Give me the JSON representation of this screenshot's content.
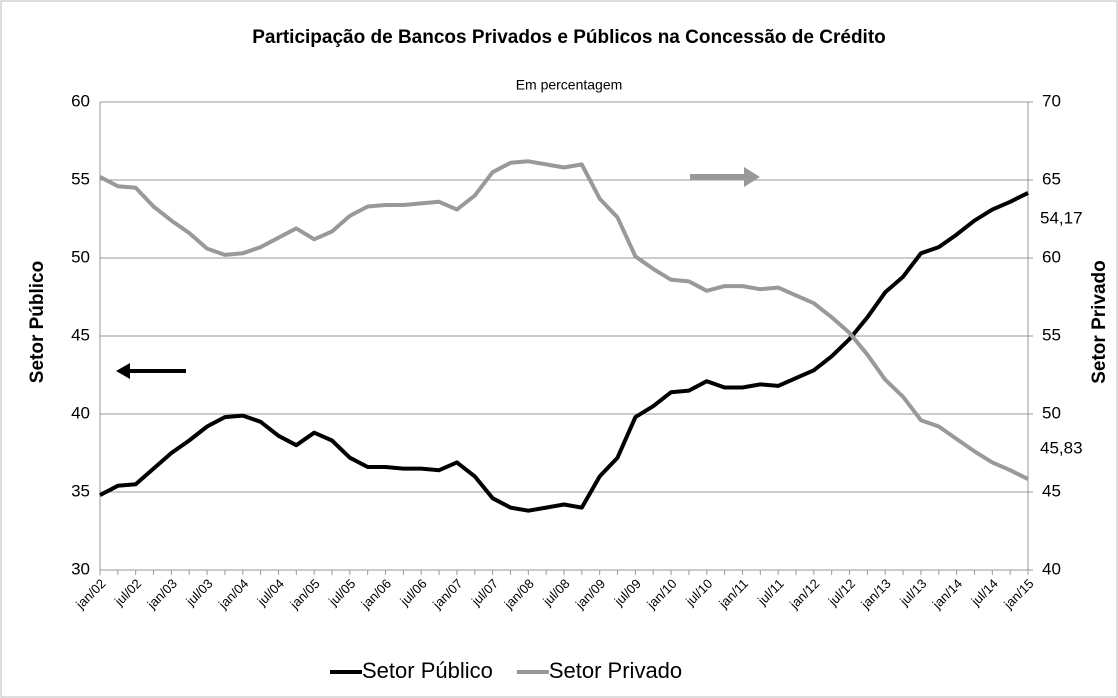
{
  "chart_data": {
    "type": "line",
    "title": "Participação de Bancos Privados e Públicos na Concessão de Crédito",
    "subtitle": "Em percentagem",
    "y_label": "Setor Público",
    "y2_label": "Setor Privado",
    "categories": [
      "jan/02",
      null,
      "jul/02",
      null,
      "jan/03",
      null,
      "jul/03",
      null,
      "jan/04",
      null,
      "jul/04",
      null,
      "jan/05",
      null,
      "jul/05",
      null,
      "jan/06",
      null,
      "jul/06",
      null,
      "jan/07",
      null,
      "jul/07",
      null,
      "jan/08",
      null,
      "jul/08",
      null,
      "jan/09",
      null,
      "jul/09",
      null,
      "jan/10",
      null,
      "jul/10",
      null,
      "jan/11",
      null,
      "jul/11",
      null,
      "jan/12",
      null,
      "jul/12",
      null,
      "jan/13",
      null,
      "jul/13",
      null,
      "jan/14",
      null,
      "jul/14",
      null,
      "jan/15"
    ],
    "series": [
      {
        "name": "Setor Público",
        "color": "#000000",
        "axis": "y",
        "values": [
          34.8,
          35.4,
          35.5,
          36.5,
          37.5,
          38.3,
          39.2,
          39.8,
          39.9,
          39.5,
          38.6,
          38.0,
          38.8,
          38.3,
          37.2,
          36.6,
          36.6,
          36.5,
          36.5,
          36.4,
          36.9,
          36.0,
          34.6,
          34.0,
          33.8,
          34.0,
          34.2,
          34.0,
          36.0,
          37.2,
          39.8,
          40.5,
          41.4,
          41.5,
          42.1,
          41.7,
          41.7,
          41.9,
          41.8,
          42.3,
          42.8,
          43.7,
          44.8,
          46.2,
          47.8,
          48.8,
          50.3,
          50.7,
          51.5,
          52.4,
          53.1,
          53.6,
          54.17
        ],
        "value_labels": [
          null,
          null,
          null,
          null,
          null,
          null,
          null,
          null,
          null,
          null,
          null,
          null,
          null,
          null,
          null,
          null,
          null,
          null,
          null,
          null,
          null,
          null,
          null,
          null,
          null,
          null,
          null,
          null,
          null,
          null,
          null,
          null,
          null,
          null,
          null,
          null,
          null,
          null,
          null,
          null,
          null,
          null,
          null,
          null,
          null,
          null,
          null,
          null,
          null,
          null,
          null,
          null,
          "54,17"
        ]
      },
      {
        "name": "Setor Privado",
        "color": "#999999",
        "axis": "y2",
        "values": [
          65.2,
          64.6,
          64.5,
          63.3,
          62.4,
          61.6,
          60.6,
          60.2,
          60.3,
          60.7,
          61.3,
          61.9,
          61.2,
          61.7,
          62.7,
          63.3,
          63.4,
          63.4,
          63.5,
          63.6,
          63.1,
          64.0,
          65.5,
          66.1,
          66.2,
          66.0,
          65.8,
          66.0,
          63.8,
          62.6,
          60.1,
          59.3,
          58.6,
          58.5,
          57.9,
          58.2,
          58.2,
          58.0,
          58.1,
          57.6,
          57.1,
          56.2,
          55.2,
          53.8,
          52.2,
          51.1,
          49.6,
          49.2,
          48.4,
          47.6,
          46.9,
          46.4,
          45.83
        ],
        "value_labels": [
          null,
          null,
          null,
          null,
          null,
          null,
          null,
          null,
          null,
          null,
          null,
          null,
          null,
          null,
          null,
          null,
          null,
          null,
          null,
          null,
          null,
          null,
          null,
          null,
          null,
          null,
          null,
          null,
          null,
          null,
          null,
          null,
          null,
          null,
          null,
          null,
          null,
          null,
          null,
          null,
          null,
          null,
          null,
          null,
          null,
          null,
          null,
          null,
          null,
          null,
          null,
          null,
          "45,83"
        ]
      }
    ],
    "ylim": [
      30,
      60
    ],
    "yticks": [
      30,
      35,
      40,
      45,
      50,
      55,
      60
    ],
    "y2lim": [
      40,
      70
    ],
    "y2ticks": [
      40,
      45,
      50,
      55,
      60,
      65,
      70
    ],
    "grid": true,
    "legend": "bottom"
  }
}
